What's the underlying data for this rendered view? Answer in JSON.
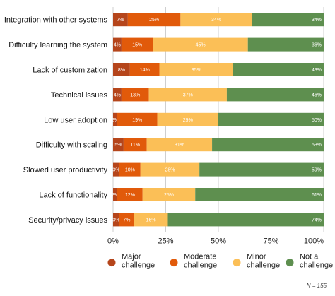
{
  "chart_data": {
    "type": "bar",
    "orientation": "horizontal",
    "stacked": true,
    "categories": [
      "Integration with other systems",
      "Difficulty learning the system",
      "Lack of customization",
      "Technical issues",
      "Low user adoption",
      "Difficulty with scaling",
      "Slowed user productivity",
      "Lack of functionality",
      "Security/privacy issues"
    ],
    "series": [
      {
        "name": "Major challenge",
        "color": "#b5451b",
        "values": [
          7,
          4,
          8,
          4,
          2,
          5,
          3,
          2,
          3
        ]
      },
      {
        "name": "Moderate challenge",
        "color": "#e15a0a",
        "values": [
          25,
          15,
          14,
          13,
          19,
          11,
          10,
          12,
          7
        ]
      },
      {
        "name": "Minor challenge",
        "color": "#fbbf57",
        "values": [
          34,
          45,
          35,
          37,
          29,
          31,
          28,
          25,
          16
        ]
      },
      {
        "name": "Not a challenge",
        "color": "#5e8f4f",
        "values": [
          34,
          36,
          43,
          46,
          50,
          53,
          59,
          61,
          74
        ]
      }
    ],
    "data_labels": [
      [
        "7%",
        "25%",
        "34%",
        "34%"
      ],
      [
        "4%",
        "15%",
        "45%",
        "36%"
      ],
      [
        "8%",
        "14%",
        "35%",
        "43%"
      ],
      [
        "4%",
        "13%",
        "37%",
        "46%"
      ],
      [
        "2%",
        "19%",
        "29%",
        "50%"
      ],
      [
        "5%",
        "11%",
        "31%",
        "53%"
      ],
      [
        "3%",
        "10%",
        "28%",
        "59%"
      ],
      [
        "2%",
        "12%",
        "25%",
        "61%"
      ],
      [
        "3%",
        "7%",
        "16%",
        "74%"
      ]
    ],
    "xlim": [
      0,
      100
    ],
    "x_ticks": [
      "0%",
      "25%",
      "50%",
      "75%",
      "100%"
    ],
    "grid": true,
    "legend_position": "bottom",
    "legend_labels": [
      [
        "Major",
        "challenge"
      ],
      [
        "Moderate",
        "challenge"
      ],
      [
        "Minor",
        "challenge"
      ],
      [
        "Not a",
        "challenge"
      ]
    ],
    "note": "N = 155"
  }
}
